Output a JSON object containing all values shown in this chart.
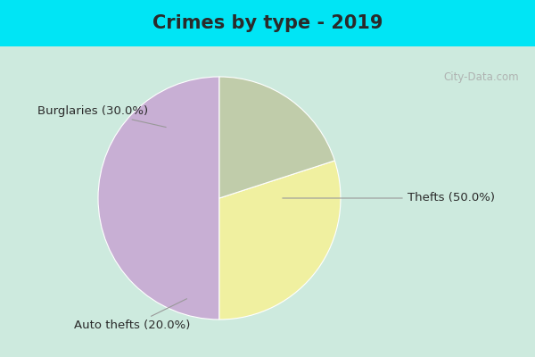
{
  "title": "Crimes by type - 2019",
  "slices": [
    {
      "label": "Thefts (50.0%)",
      "value": 50.0,
      "color": "#c8afd4"
    },
    {
      "label": "Burglaries (30.0%)",
      "value": 30.0,
      "color": "#f0f0a0"
    },
    {
      "label": "Auto thefts (20.0%)",
      "value": 20.0,
      "color": "#c0ccaa"
    }
  ],
  "start_angle": 90,
  "bg_color_top": "#00e5f5",
  "bg_color_inner": "#cdeade",
  "watermark": "City-Data.com",
  "title_fontsize": 15,
  "label_fontsize": 9.5,
  "title_color": "#2a2a2a"
}
